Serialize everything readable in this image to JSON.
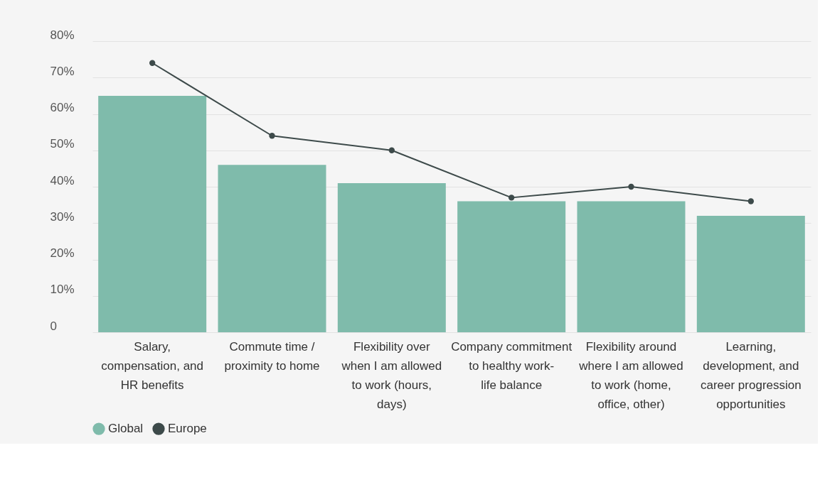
{
  "chart_data": {
    "type": "bar",
    "categories": [
      "Salary, compensation, and HR benefits",
      "Commute time / proximity to home",
      "Flexibility over when I am allowed to work (hours, days)",
      "Company commitment to healthy work-life balance",
      "Flexibility around where I am allowed to work (home, office, other)",
      "Learning, development, and career progression opportunities"
    ],
    "series": [
      {
        "name": "Global",
        "color": "#7fbbab",
        "values": [
          65,
          46,
          41,
          36,
          36,
          32
        ]
      },
      {
        "name": "Europe",
        "color": "#3d4a4a",
        "type": "line",
        "values": [
          74,
          54,
          50,
          37,
          40,
          36
        ]
      }
    ],
    "ylim": [
      0,
      80
    ],
    "yticks": [
      {
        "value": 0,
        "label": "0"
      },
      {
        "value": 10,
        "label": "10%"
      },
      {
        "value": 20,
        "label": "20%"
      },
      {
        "value": 30,
        "label": "30%"
      },
      {
        "value": 40,
        "label": "40%"
      },
      {
        "value": 50,
        "label": "50%"
      },
      {
        "value": 60,
        "label": "60%"
      },
      {
        "value": 70,
        "label": "70%"
      },
      {
        "value": 80,
        "label": "80%"
      }
    ],
    "grid": "y",
    "legend": "bottom",
    "marker": "circle",
    "line_style": "solid"
  }
}
